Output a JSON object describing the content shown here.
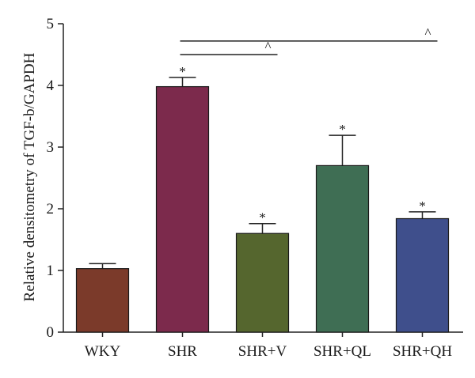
{
  "chart_data": {
    "type": "bar",
    "categories": [
      "WKY",
      "SHR",
      "SHR+V",
      "SHR+QL",
      "SHR+QH"
    ],
    "values": [
      1.03,
      3.98,
      1.6,
      2.7,
      1.84
    ],
    "errors": [
      0.08,
      0.15,
      0.16,
      0.49,
      0.11
    ],
    "bar_colors": [
      "#7b3a2a",
      "#7c2a4c",
      "#55662e",
      "#3f6e54",
      "#3f4f8c"
    ],
    "ylabel": "Relative densitometry of TGF-b/GAPDH",
    "xlabel": "",
    "ylim": [
      0,
      5
    ],
    "yticks": [
      "0",
      "1",
      "2",
      "3",
      "4",
      "5"
    ],
    "grid": false,
    "bar_markers": [
      "",
      "*",
      "*",
      "*",
      "*"
    ],
    "comparisons": [
      {
        "from": "SHR",
        "to": "SHR+V",
        "level": 4.5,
        "symbol": "^"
      },
      {
        "from": "SHR",
        "to": "SHR+QH",
        "level": 4.72,
        "symbol": "^"
      }
    ]
  }
}
